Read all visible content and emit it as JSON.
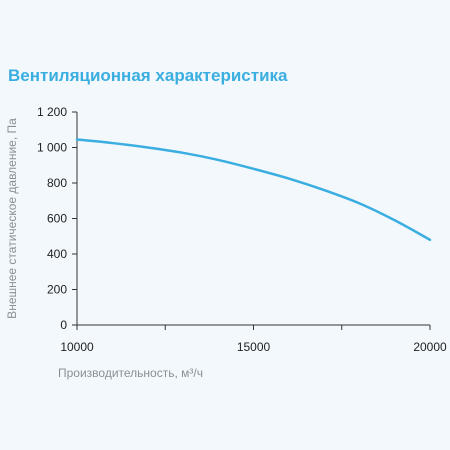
{
  "chart_data": {
    "type": "line",
    "title": "Вентиляционная характеристика",
    "xlabel": "Производительность, м³/ч",
    "ylabel": "Внешнее статическое давление, Па",
    "xlim": [
      10000,
      20000
    ],
    "ylim": [
      0,
      1200
    ],
    "x_ticks": [
      10000,
      15000,
      20000
    ],
    "x_tick_labels": [
      "10000",
      "15000",
      "20000"
    ],
    "y_ticks": [
      0,
      200,
      400,
      600,
      800,
      1000,
      1200
    ],
    "y_tick_labels": [
      "0",
      "200",
      "400",
      "600",
      "800",
      "1 000",
      "1 200"
    ],
    "grid": false,
    "series": [
      {
        "color": "#3aaee0",
        "x": [
          10000,
          11000,
          12000,
          13000,
          14000,
          15000,
          16000,
          17000,
          18000,
          19000,
          20000
        ],
        "y": [
          1045,
          1025,
          1000,
          970,
          930,
          880,
          825,
          760,
          685,
          590,
          480
        ]
      }
    ]
  }
}
